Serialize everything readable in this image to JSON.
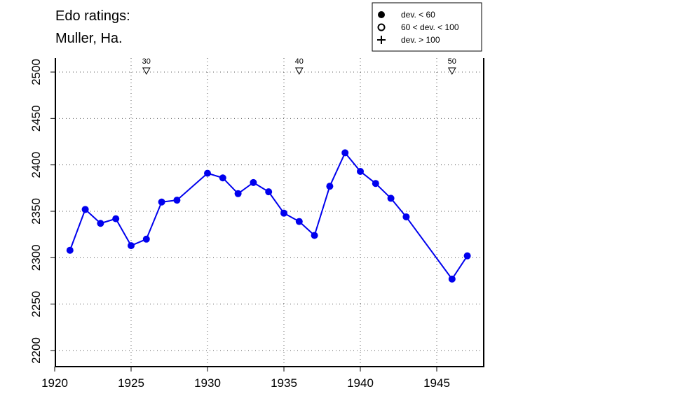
{
  "chart_data": {
    "type": "line",
    "title_lines": [
      "Edo ratings:",
      "Muller, Ha."
    ],
    "xlim": [
      1921,
      1947
    ],
    "ylim": [
      2200,
      2500
    ],
    "x_ticks": [
      1920,
      1925,
      1930,
      1935,
      1940,
      1945
    ],
    "y_ticks": [
      2200,
      2250,
      2300,
      2350,
      2400,
      2450,
      2500
    ],
    "grid": "dotted",
    "series": [
      {
        "color": "#0000ee",
        "marker": "filled-circle",
        "x": [
          1921,
          1922,
          1923,
          1924,
          1925,
          1926,
          1927,
          1928,
          1930,
          1931,
          1932,
          1933,
          1934,
          1935,
          1936,
          1937,
          1938,
          1939,
          1940,
          1941,
          1942,
          1943,
          1946,
          1947
        ],
        "y": [
          2308,
          2352,
          2337,
          2342,
          2313,
          2320,
          2360,
          2362,
          2391,
          2386,
          2369,
          2381,
          2371,
          2348,
          2339,
          2324,
          2377,
          2413,
          2393,
          2380,
          2364,
          2344,
          2277,
          2302
        ]
      }
    ],
    "annotations": [
      {
        "x": 1926,
        "label": "30",
        "marker": "down-triangle"
      },
      {
        "x": 1936,
        "label": "40",
        "marker": "down-triangle"
      },
      {
        "x": 1946,
        "label": "50",
        "marker": "down-triangle"
      }
    ],
    "legend": {
      "position": "top-right",
      "entries": [
        {
          "symbol": "filled-circle",
          "label": "dev. < 60"
        },
        {
          "symbol": "open-circle",
          "label": "60 < dev. < 100"
        },
        {
          "symbol": "plus",
          "label": "dev. > 100"
        }
      ]
    }
  }
}
